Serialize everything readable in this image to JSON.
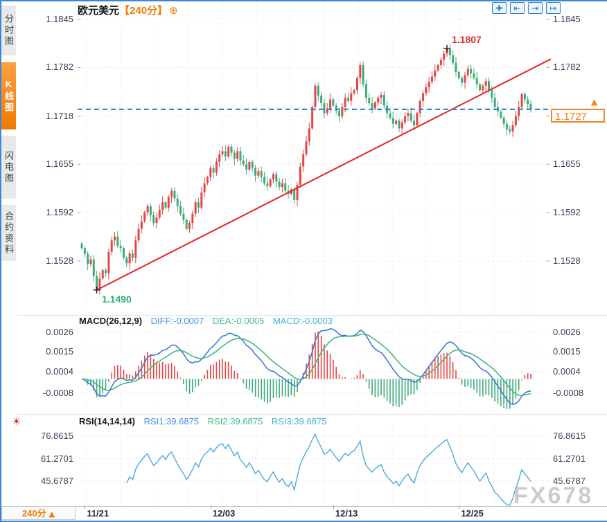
{
  "colors": {
    "up": "#e64545",
    "down": "#3cab77",
    "trend": "#e62222",
    "price_line": "#1e7de0",
    "diff_line": "#3a7bd5",
    "dea_line": "#43b77f",
    "rsi_line": "#4aa9dd",
    "grid": "#dadada",
    "accent_orange": "#f07c00"
  },
  "sidebar": {
    "items": [
      {
        "label": "分时图",
        "selected": false
      },
      {
        "label": "K线图",
        "selected": true
      },
      {
        "label": "闪电图",
        "selected": false
      },
      {
        "label": "合约资料",
        "selected": false
      }
    ]
  },
  "header": {
    "title": "欧元美元",
    "period_tag": "【240分】",
    "add_icon": "⊕"
  },
  "toolbar": {
    "icons": [
      {
        "name": "pan-icon",
        "glyph": "✚"
      },
      {
        "name": "zoom-out-icon",
        "glyph": "⇤"
      },
      {
        "name": "zoom-in-icon",
        "glyph": "⇥"
      },
      {
        "name": "shift-right-icon",
        "glyph": "↦"
      }
    ]
  },
  "price_axis": {
    "values": [
      1.1845,
      1.1782,
      1.1718,
      1.1655,
      1.1592,
      1.1528
    ],
    "left_labels": [
      "1.1845",
      "1.1782",
      "1.1718",
      "1.1655",
      "1.1592",
      "1.1528"
    ],
    "right_labels": [
      "1.1845",
      "1.1782",
      "",
      "1.1655",
      "1.1592",
      "1.1528"
    ]
  },
  "current_price": {
    "value": "1.1727",
    "arrow": "▲"
  },
  "annotations": {
    "high": {
      "label": "1.1807",
      "color": "#e03131"
    },
    "low": {
      "label": "1.1490",
      "color": "#2fae75"
    }
  },
  "macd_panel": {
    "title": "MACD(26,12,9)",
    "diff_label": "DIFF:-0.0007",
    "dea_label": "DEA:-0.0005",
    "macd_label": "MACD:-0.0003",
    "axis_labels": [
      "0.0026",
      "0.0015",
      "0.0004",
      "-0.0008"
    ]
  },
  "rsi_panel": {
    "title": "RSI(14,14,14)",
    "rsi1_label": "RSI1:39.6875",
    "rsi2_label": "RSI2:39.6875",
    "rsi3_label": "RSI3:39.6875",
    "axis_labels": [
      "76.8615",
      "61.2701",
      "45.6787"
    ]
  },
  "settings_icon": {
    "glyph": "☀"
  },
  "footer": {
    "period": "240分",
    "arrow": "▲"
  },
  "watermark": "FX678",
  "chart_data": [
    {
      "type": "candlestick",
      "symbol": "欧元美元",
      "interval": "240分",
      "y_ticks": [
        1.1845,
        1.1782,
        1.1718,
        1.1655,
        1.1592,
        1.1528
      ],
      "x_ticks": [
        {
          "label": "11/21",
          "index": 1
        },
        {
          "label": "12/03",
          "index": 43
        },
        {
          "label": "12/13",
          "index": 84
        },
        {
          "label": "12/25",
          "index": 126
        }
      ],
      "last_price": 1.1727,
      "high_annotation": {
        "index": 122,
        "price": 1.1807
      },
      "low_annotation": {
        "index": 5,
        "price": 1.149
      },
      "trendline": {
        "from_index": 5,
        "from_price": 1.149,
        "to_price": 1.1793
      },
      "closes": [
        1.1545,
        1.1537,
        1.1524,
        1.153,
        1.1508,
        1.149,
        1.1505,
        1.1516,
        1.1512,
        1.154,
        1.1555,
        1.156,
        1.1548,
        1.1545,
        1.1532,
        1.1525,
        1.1538,
        1.1532,
        1.1555,
        1.157,
        1.158,
        1.1592,
        1.16,
        1.1588,
        1.1578,
        1.1585,
        1.1595,
        1.1605,
        1.1598,
        1.1612,
        1.162,
        1.161,
        1.16,
        1.159,
        1.1582,
        1.157,
        1.1578,
        1.159,
        1.1605,
        1.1598,
        1.1618,
        1.163,
        1.1638,
        1.165,
        1.1644,
        1.1658,
        1.1668,
        1.1672,
        1.1665,
        1.1678,
        1.167,
        1.1662,
        1.1672,
        1.166,
        1.1655,
        1.1648,
        1.1658,
        1.165,
        1.164,
        1.1646,
        1.1638,
        1.163,
        1.1626,
        1.1635,
        1.1642,
        1.1632,
        1.1625,
        1.163,
        1.162,
        1.1616,
        1.1622,
        1.1608,
        1.1628,
        1.1652,
        1.1668,
        1.1685,
        1.1702,
        1.173,
        1.1758,
        1.1745,
        1.1735,
        1.1722,
        1.1728,
        1.174,
        1.1732,
        1.1725,
        1.1718,
        1.173,
        1.1742,
        1.1738,
        1.1748,
        1.1752,
        1.1768,
        1.1785,
        1.176,
        1.1742,
        1.1735,
        1.1728,
        1.1736,
        1.1742,
        1.1746,
        1.1732,
        1.1722,
        1.1716,
        1.1708,
        1.1712,
        1.1702,
        1.171,
        1.1718,
        1.1722,
        1.1712,
        1.1706,
        1.1722,
        1.1738,
        1.1748,
        1.1756,
        1.1763,
        1.177,
        1.1778,
        1.1785,
        1.1792,
        1.18,
        1.1806,
        1.1798,
        1.1788,
        1.1776,
        1.1768,
        1.1762,
        1.1772,
        1.178,
        1.1774,
        1.1768,
        1.176,
        1.1752,
        1.1758,
        1.1764,
        1.1752,
        1.1742,
        1.173,
        1.1724,
        1.1716,
        1.1708,
        1.1701,
        1.1698,
        1.1706,
        1.1718,
        1.173,
        1.1747,
        1.174,
        1.1734,
        1.1727
      ]
    },
    {
      "type": "line",
      "name": "MACD",
      "params": [
        26,
        12,
        9
      ],
      "current": {
        "DIFF": -0.0007,
        "DEA": -0.0005,
        "MACD": -0.0003
      },
      "y_ticks": [
        0.0026,
        0.0015,
        0.0004,
        -0.0008
      ],
      "derived_from": "closes"
    },
    {
      "type": "line",
      "name": "RSI",
      "params": [
        14,
        14,
        14
      ],
      "current": {
        "RSI1": 39.6875,
        "RSI2": 39.6875,
        "RSI3": 39.6875
      },
      "y_ticks": [
        76.8615,
        61.2701,
        45.6787
      ],
      "derived_from": "closes"
    }
  ]
}
